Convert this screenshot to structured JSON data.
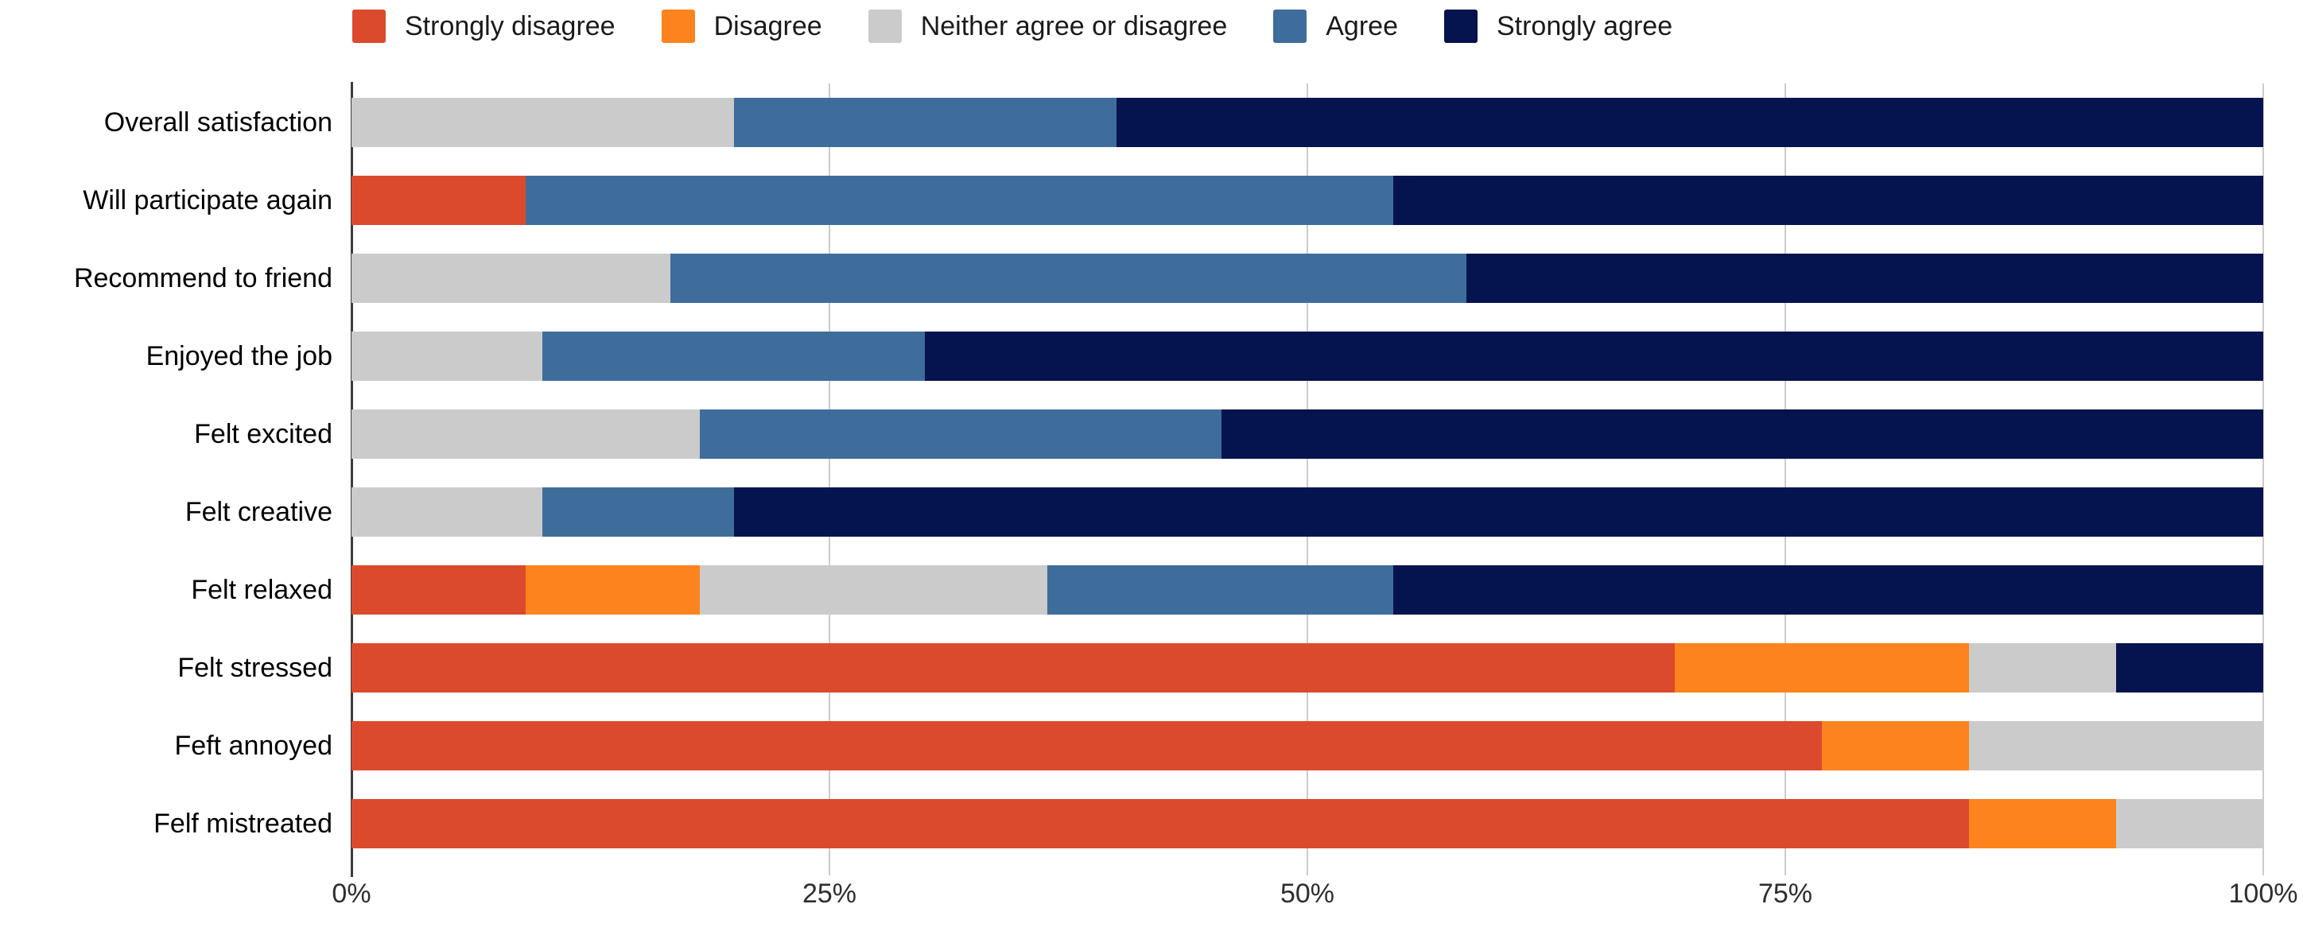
{
  "chart_data": {
    "type": "bar",
    "orientation": "horizontal",
    "stacking": "percent",
    "title": "",
    "xlabel": "",
    "ylabel": "",
    "categories": [
      "Overall satisfaction",
      "Will participate again",
      "Recommend to friend",
      "Enjoyed the job",
      "Felt excited",
      "Felt creative",
      "Felt relaxed",
      "Felt stressed",
      "Feft annoyed",
      "Felf mistreated"
    ],
    "series": [
      {
        "name": "Strongly disagree",
        "color": "#db4a2c",
        "values": [
          0,
          9.1,
          0,
          0,
          0,
          0,
          9.1,
          69.2,
          76.9,
          84.6
        ]
      },
      {
        "name": "Disagree",
        "color": "#fc831e",
        "values": [
          0,
          0,
          0,
          0,
          0,
          0,
          9.1,
          15.4,
          7.7,
          7.7
        ]
      },
      {
        "name": "Neither agree or disagree",
        "color": "#cbcbcb",
        "values": [
          20,
          0,
          16.7,
          10,
          18.2,
          10,
          18.2,
          7.7,
          15.4,
          7.7
        ]
      },
      {
        "name": "Agree",
        "color": "#3e6d9c",
        "values": [
          20,
          45.4,
          41.6,
          20,
          27.3,
          10,
          18.1,
          0,
          0,
          0
        ]
      },
      {
        "name": "Strongly agree",
        "color": "#05134e",
        "values": [
          60,
          45.5,
          41.7,
          70,
          54.5,
          80,
          45.5,
          7.7,
          0,
          0
        ]
      }
    ],
    "x_axis": {
      "range": [
        0,
        100
      ],
      "grid": true,
      "ticks": [
        {
          "value": 0,
          "label": "0%"
        },
        {
          "value": 25,
          "label": "25%"
        },
        {
          "value": 50,
          "label": "50%"
        },
        {
          "value": 75,
          "label": "75%"
        },
        {
          "value": 100,
          "label": "100%"
        }
      ]
    },
    "legend_position": "top"
  },
  "colors": {
    "background": "#ffffff",
    "grid": "#cccccc",
    "axis": "#3c3c3c",
    "category_text": "#000000",
    "tick_text": "#2e2e2e"
  }
}
